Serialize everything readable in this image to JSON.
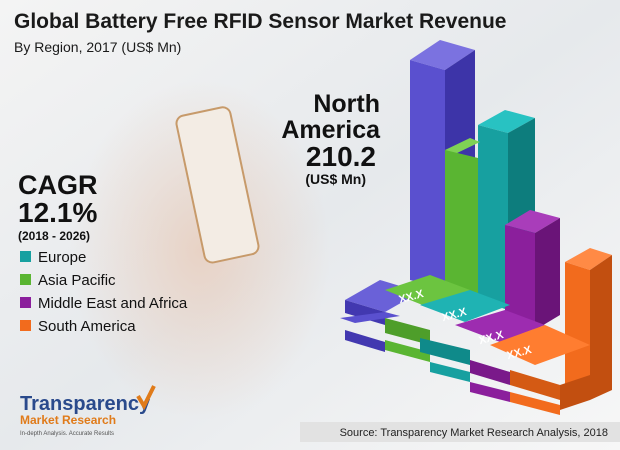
{
  "header": {
    "title": "Global Battery Free RFID Sensor Market Revenue",
    "subtitle": "By Region, 2017 (US$ Mn)"
  },
  "highlight": {
    "region_line1": "North",
    "region_line2": "America",
    "value": "210.2",
    "unit": "(US$ Mn)"
  },
  "cagr": {
    "label": "CAGR",
    "value": "12.1%",
    "period": "(2018 - 2026)"
  },
  "legend": [
    {
      "name": "Europe",
      "color": "#17a0a0"
    },
    {
      "name": "Asia Pacific",
      "color": "#5ab532"
    },
    {
      "name": "Middle East and Africa",
      "color": "#8b1f9c"
    },
    {
      "name": "South America",
      "color": "#f26b1d"
    }
  ],
  "bar_labels": [
    "XX.X",
    "XX.X",
    "XX.X",
    "XX.X"
  ],
  "logo": {
    "name": "Transparency",
    "sub": "Market Research",
    "tagline": "In-depth Analysis. Accurate Results"
  },
  "source": "Source: Transparency Market Research Analysis, 2018"
}
